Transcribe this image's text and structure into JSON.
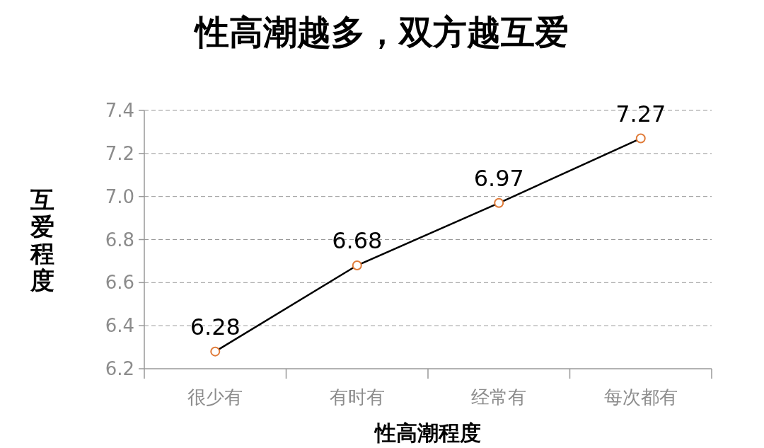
{
  "chart_data": {
    "type": "line",
    "title": "性高潮越多，双方越互爱",
    "xlabel": "性高潮程度",
    "ylabel": "互爱程度",
    "categories": [
      "很少有",
      "有时有",
      "经常有",
      "每次都有"
    ],
    "series": [
      {
        "color": "#000000",
        "values": [
          6.28,
          6.68,
          6.97,
          7.27
        ]
      }
    ],
    "ylim": [
      6.2,
      7.4
    ],
    "yticks": [
      6.2,
      6.4,
      6.6,
      6.8,
      {
        "value": 7,
        "label": "7.0"
      },
      7.2,
      7.4
    ],
    "grid": "y",
    "marker": "circle",
    "data_labels": true
  }
}
